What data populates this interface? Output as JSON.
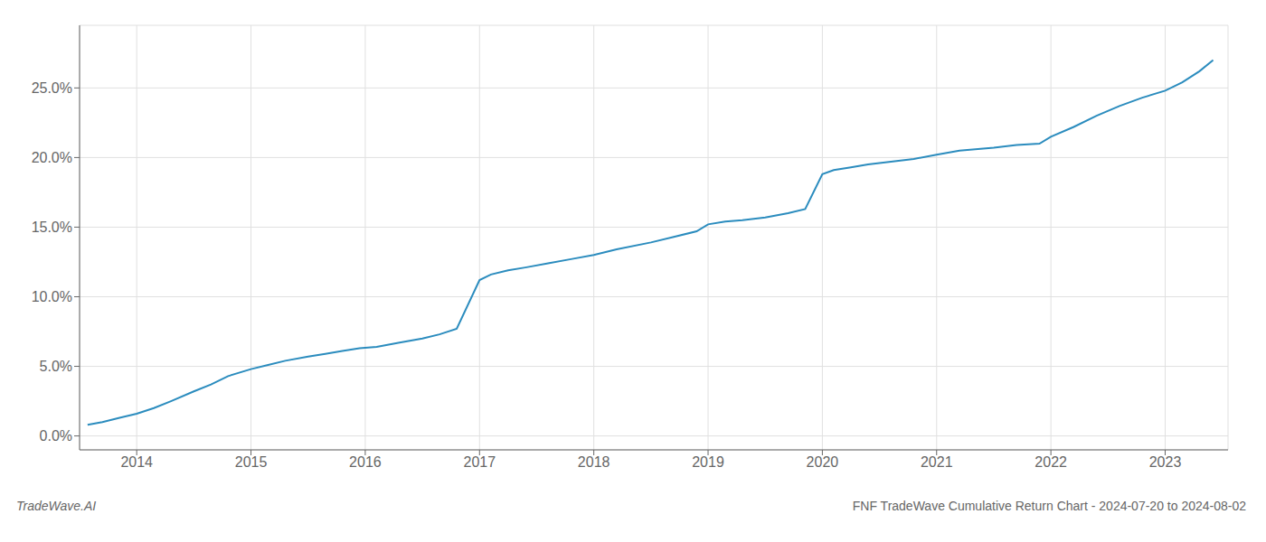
{
  "chart_data": {
    "type": "line",
    "title": "FNF TradeWave Cumulative Return Chart - 2024-07-20 to 2024-08-02",
    "annotations": [
      "TradeWave.AI"
    ],
    "color": "#2b8cbe",
    "x": [
      2013.57,
      2013.7,
      2013.85,
      2014.0,
      2014.15,
      2014.3,
      2014.5,
      2014.65,
      2014.8,
      2015.0,
      2015.15,
      2015.3,
      2015.5,
      2015.65,
      2015.8,
      2015.95,
      2016.1,
      2016.3,
      2016.5,
      2016.65,
      2016.8,
      2017.0,
      2017.1,
      2017.25,
      2017.4,
      2017.6,
      2017.8,
      2018.0,
      2018.2,
      2018.5,
      2018.7,
      2018.9,
      2019.0,
      2019.15,
      2019.3,
      2019.5,
      2019.7,
      2019.85,
      2020.0,
      2020.1,
      2020.25,
      2020.4,
      2020.6,
      2020.8,
      2021.0,
      2021.2,
      2021.5,
      2021.7,
      2021.9,
      2022.0,
      2022.2,
      2022.4,
      2022.6,
      2022.8,
      2023.0,
      2023.15,
      2023.3,
      2023.42
    ],
    "values": [
      0.008,
      0.01,
      0.013,
      0.016,
      0.02,
      0.025,
      0.032,
      0.037,
      0.043,
      0.048,
      0.051,
      0.054,
      0.057,
      0.059,
      0.061,
      0.063,
      0.064,
      0.067,
      0.07,
      0.073,
      0.077,
      0.112,
      0.116,
      0.119,
      0.121,
      0.124,
      0.127,
      0.13,
      0.134,
      0.139,
      0.143,
      0.147,
      0.152,
      0.154,
      0.155,
      0.157,
      0.16,
      0.163,
      0.188,
      0.191,
      0.193,
      0.195,
      0.197,
      0.199,
      0.202,
      0.205,
      0.207,
      0.209,
      0.21,
      0.215,
      0.222,
      0.23,
      0.237,
      0.243,
      0.248,
      0.254,
      0.262,
      0.27
    ],
    "xlim": [
      2013.5,
      2023.55
    ],
    "ylim": [
      -0.01,
      0.295
    ],
    "xticks": [
      2014,
      2015,
      2016,
      2017,
      2018,
      2019,
      2020,
      2021,
      2022,
      2023
    ],
    "yticks": [
      {
        "value": 0.0,
        "label": "0.0%"
      },
      {
        "value": 0.05,
        "label": "5.0%"
      },
      {
        "value": 0.1,
        "label": "10.0%"
      },
      {
        "value": 0.15,
        "label": "15.0%"
      },
      {
        "value": 0.2,
        "label": "20.0%"
      },
      {
        "value": 0.25,
        "label": "25.0%"
      }
    ],
    "grid": true
  }
}
